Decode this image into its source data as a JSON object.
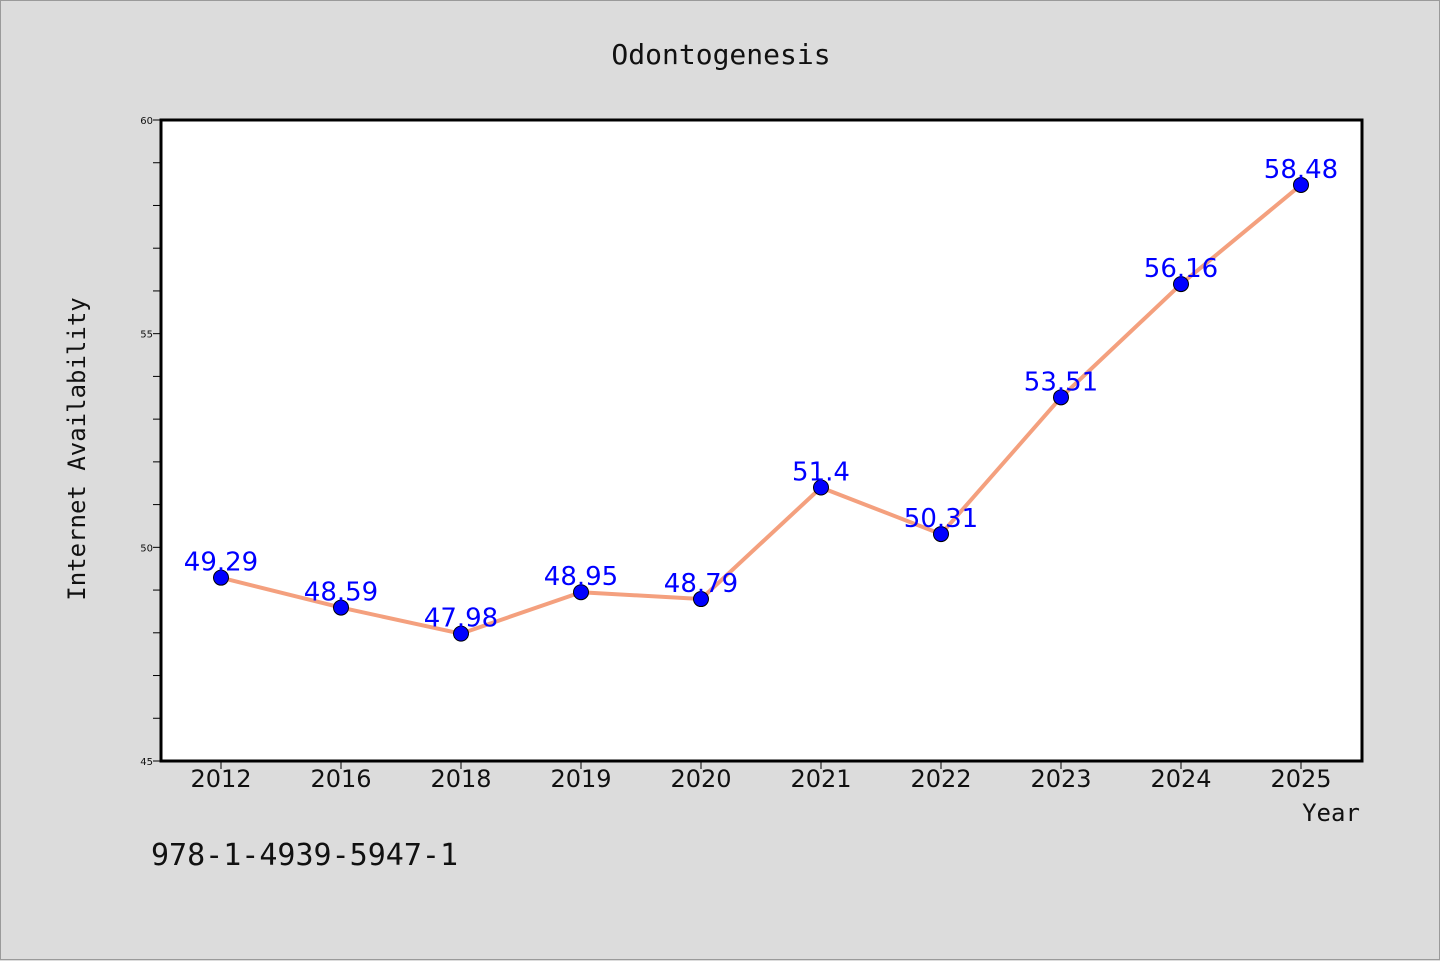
{
  "chart_data": {
    "type": "line",
    "title": "Odontogenesis",
    "xlabel": "Year",
    "ylabel": "Internet Availability",
    "categories": [
      "2012",
      "2016",
      "2018",
      "2019",
      "2020",
      "2021",
      "2022",
      "2023",
      "2024",
      "2025"
    ],
    "values": [
      49.29,
      48.59,
      47.98,
      48.95,
      48.79,
      51.4,
      50.31,
      53.51,
      56.16,
      58.48
    ],
    "data_labels": [
      "49.29",
      "48.59",
      "47.98",
      "48.95",
      "48.79",
      "51.4",
      "50.31",
      "53.51",
      "56.16",
      "58.48"
    ],
    "ylim": [
      45,
      60
    ],
    "yticks": [
      "45",
      "50",
      "55",
      "60"
    ],
    "grid": false,
    "colors": {
      "line": "#f4a07e",
      "marker": "#0000ff",
      "label": "#0000ff"
    }
  },
  "footer": {
    "isbn": "978-1-4939-5947-1"
  }
}
